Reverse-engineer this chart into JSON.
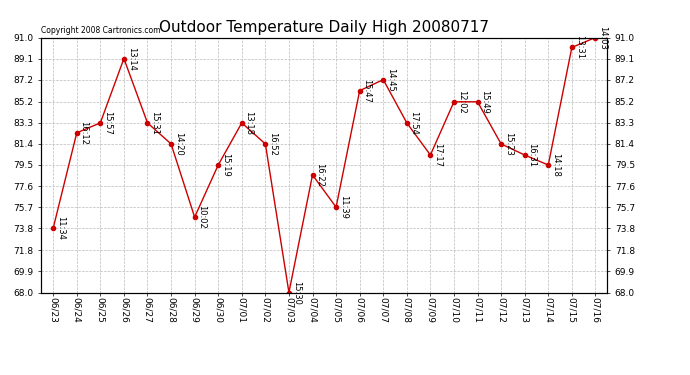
{
  "title": "Outdoor Temperature Daily High 20080717",
  "copyright_text": "Copyright 2008 Cartronics.com",
  "x_labels": [
    "06/23",
    "06/24",
    "06/25",
    "06/26",
    "06/27",
    "06/28",
    "06/29",
    "06/30",
    "07/01",
    "07/02",
    "07/03",
    "07/04",
    "07/05",
    "07/06",
    "07/07",
    "07/08",
    "07/09",
    "07/10",
    "07/11",
    "07/12",
    "07/13",
    "07/14",
    "07/15",
    "07/16"
  ],
  "y_values": [
    73.8,
    82.4,
    83.3,
    89.1,
    83.3,
    81.4,
    74.8,
    79.5,
    83.3,
    81.4,
    68.0,
    78.6,
    75.7,
    86.2,
    87.2,
    83.3,
    80.4,
    85.2,
    85.2,
    81.4,
    80.4,
    79.5,
    90.1,
    91.0
  ],
  "point_labels": [
    "11:34",
    "16:12",
    "15:57",
    "13:14",
    "15:31",
    "14:20",
    "10:02",
    "15:19",
    "13:18",
    "16:52",
    "15:30",
    "16:22",
    "11:39",
    "15:47",
    "14:45",
    "17:54",
    "17:17",
    "12:02",
    "15:49",
    "15:23",
    "16:31",
    "14:18",
    "13:31",
    "14:03"
  ],
  "y_ticks": [
    68.0,
    69.9,
    71.8,
    73.8,
    75.7,
    77.6,
    79.5,
    81.4,
    83.3,
    85.2,
    87.2,
    89.1,
    91.0
  ],
  "line_color": "#cc0000",
  "marker_color": "#cc0000",
  "bg_color": "#ffffff",
  "plot_bg_color": "#ffffff",
  "grid_color": "#bbbbbb",
  "title_fontsize": 11,
  "label_fontsize": 6.5,
  "point_label_fontsize": 6,
  "ylim": [
    68.0,
    91.0
  ],
  "copyright_fontsize": 5.5
}
